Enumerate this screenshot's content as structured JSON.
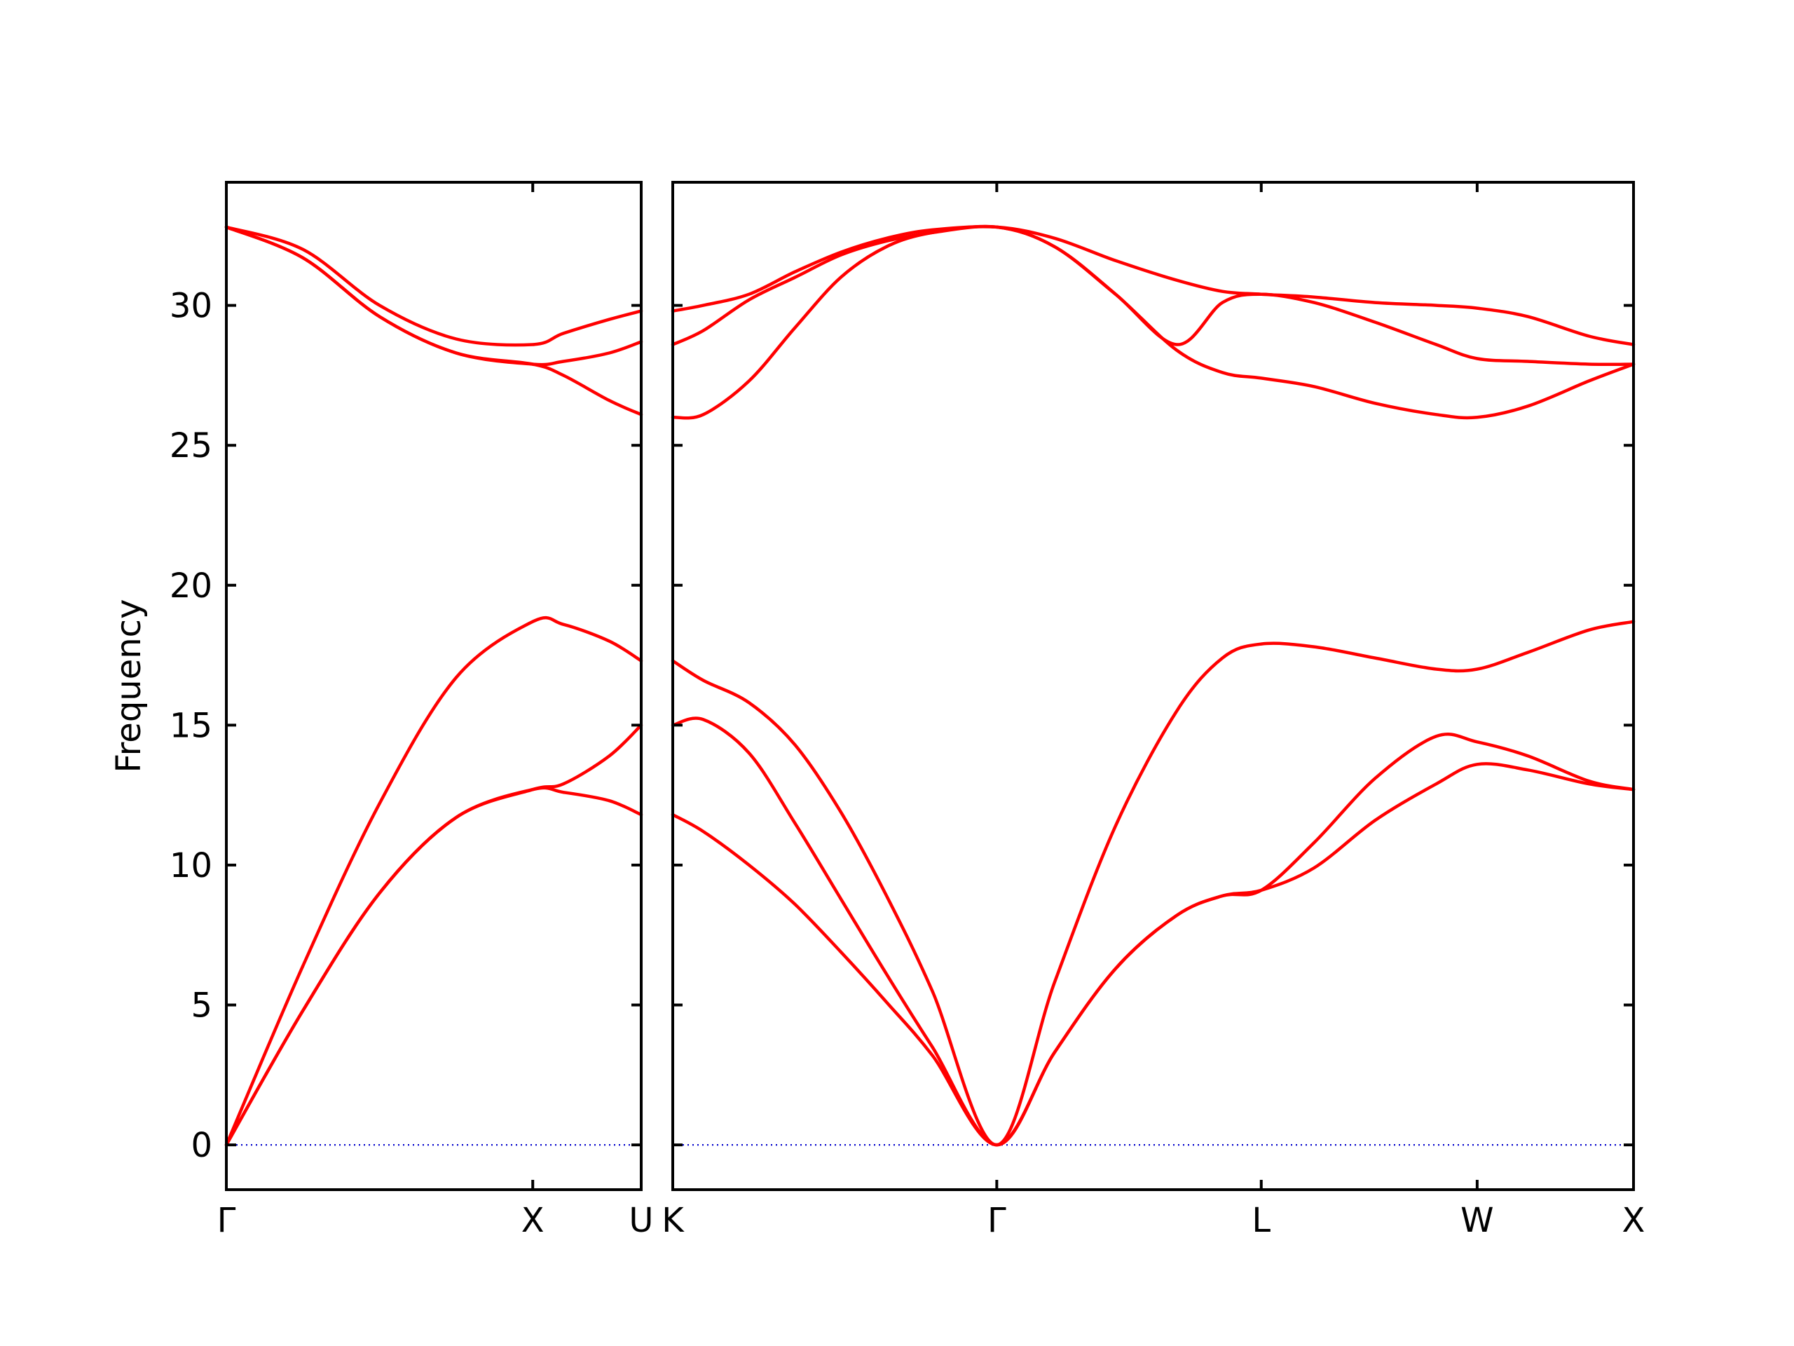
{
  "chart_data": {
    "type": "line",
    "ylabel": "Frequency",
    "ylim": [
      -1.6,
      34.4
    ],
    "yticks": [
      0,
      5,
      10,
      15,
      20,
      25,
      30
    ],
    "band_color": "#ff0000",
    "zero_line_color": "#0000cc",
    "panels": [
      {
        "xlim": [
          0,
          1.354
        ],
        "xticks": [
          {
            "x": 0,
            "label": "Γ"
          },
          {
            "x": 1.0,
            "label": "X"
          },
          {
            "x": 1.354,
            "label": "U"
          }
        ],
        "series": [
          {
            "x": [
              0,
              0.25,
              0.5,
              0.75,
              1.0,
              1.1,
              1.25,
              1.354
            ],
            "values": [
              0,
              6.4,
              12.2,
              16.7,
              18.7,
              18.6,
              18.0,
              17.3
            ]
          },
          {
            "x": [
              0,
              0.25,
              0.5,
              0.75,
              1.0,
              1.1,
              1.25,
              1.354
            ],
            "values": [
              0,
              4.8,
              9.0,
              11.7,
              12.7,
              12.9,
              13.9,
              15.0
            ]
          },
          {
            "x": [
              0,
              0.25,
              0.5,
              0.75,
              1.0,
              1.1,
              1.25,
              1.354
            ],
            "values": [
              0,
              4.8,
              9.0,
              11.7,
              12.7,
              12.6,
              12.3,
              11.8
            ]
          },
          {
            "x": [
              0,
              0.25,
              0.5,
              0.75,
              1.0,
              1.1,
              1.25,
              1.354
            ],
            "values": [
              32.8,
              32.0,
              30.0,
              28.8,
              28.6,
              29.0,
              29.5,
              29.8
            ]
          },
          {
            "x": [
              0,
              0.25,
              0.5,
              0.75,
              1.0,
              1.1,
              1.25,
              1.354
            ],
            "values": [
              32.8,
              31.7,
              29.6,
              28.3,
              27.9,
              28.0,
              28.3,
              28.7
            ]
          },
          {
            "x": [
              0,
              0.25,
              0.5,
              0.75,
              1.0,
              1.1,
              1.25,
              1.354
            ],
            "values": [
              32.8,
              31.7,
              29.6,
              28.3,
              27.9,
              27.5,
              26.6,
              26.1
            ]
          }
        ]
      },
      {
        "xlim": [
          0,
          3.146
        ],
        "xticks": [
          {
            "x": 0,
            "label": "K"
          },
          {
            "x": 1.061,
            "label": "Γ"
          },
          {
            "x": 1.927,
            "label": "L"
          },
          {
            "x": 2.634,
            "label": "W"
          },
          {
            "x": 3.146,
            "label": "X"
          }
        ],
        "series": [
          {
            "x": [
              0,
              0.1,
              0.25,
              0.4,
              0.55,
              0.7,
              0.85,
              1.061,
              1.25,
              1.45,
              1.65,
              1.8,
              1.927,
              2.1,
              2.3,
              2.5,
              2.634,
              2.8,
              3.0,
              3.146
            ],
            "values": [
              17.3,
              16.6,
              15.8,
              14.3,
              11.9,
              8.9,
              5.5,
              0,
              5.8,
              11.4,
              15.5,
              17.4,
              17.9,
              17.8,
              17.4,
              17.0,
              17.0,
              17.6,
              18.4,
              18.7
            ]
          },
          {
            "x": [
              0,
              0.1,
              0.25,
              0.4,
              0.55,
              0.7,
              0.85,
              1.061,
              1.25,
              1.45,
              1.65,
              1.8,
              1.927,
              2.1,
              2.3,
              2.5,
              2.634,
              2.8,
              3.0,
              3.146
            ],
            "values": [
              15.0,
              15.2,
              14.0,
              11.5,
              8.8,
              6.1,
              3.5,
              0,
              3.3,
              6.3,
              8.2,
              8.9,
              9.1,
              10.8,
              13.1,
              14.6,
              14.4,
              13.9,
              13.0,
              12.7
            ]
          },
          {
            "x": [
              0,
              0.1,
              0.25,
              0.4,
              0.55,
              0.7,
              0.85,
              1.061,
              1.25,
              1.45,
              1.65,
              1.8,
              1.927,
              2.1,
              2.3,
              2.5,
              2.634,
              2.8,
              3.0,
              3.146
            ],
            "values": [
              11.8,
              11.2,
              10.0,
              8.6,
              6.9,
              5.1,
              3.2,
              0,
              3.3,
              6.3,
              8.2,
              8.9,
              9.1,
              9.9,
              11.6,
              12.9,
              13.6,
              13.4,
              12.9,
              12.7
            ]
          },
          {
            "x": [
              0,
              0.1,
              0.25,
              0.4,
              0.55,
              0.7,
              0.85,
              1.061,
              1.25,
              1.45,
              1.65,
              1.8,
              1.927,
              2.1,
              2.3,
              2.5,
              2.634,
              2.8,
              3.0,
              3.146
            ],
            "values": [
              29.8,
              30.0,
              30.4,
              31.2,
              31.9,
              32.4,
              32.7,
              32.8,
              32.4,
              31.6,
              30.9,
              30.5,
              30.4,
              30.3,
              30.1,
              30.0,
              29.9,
              29.6,
              28.9,
              28.6
            ]
          },
          {
            "x": [
              0,
              0.1,
              0.25,
              0.4,
              0.55,
              0.7,
              0.85,
              1.061,
              1.25,
              1.45,
              1.65,
              1.8,
              1.927,
              2.1,
              2.3,
              2.5,
              2.634,
              2.8,
              3.0,
              3.146
            ],
            "values": [
              28.6,
              29.1,
              30.2,
              31.0,
              31.8,
              32.3,
              32.6,
              32.8,
              32.1,
              30.4,
              28.4,
              27.6,
              27.4,
              27.1,
              26.5,
              26.1,
              26.0,
              26.4,
              27.3,
              27.9
            ]
          },
          {
            "x": [
              0,
              0.1,
              0.25,
              0.4,
              0.55,
              0.7,
              0.85,
              1.061,
              1.25,
              1.45,
              1.65,
              1.8,
              1.927,
              2.1,
              2.3,
              2.5,
              2.634,
              2.8,
              3.0,
              3.146
            ],
            "values": [
              26.0,
              26.1,
              27.3,
              29.2,
              31.0,
              32.1,
              32.6,
              32.8,
              32.1,
              30.4,
              28.6,
              30.1,
              30.4,
              30.1,
              29.4,
              28.6,
              28.1,
              28.0,
              27.9,
              27.9
            ]
          }
        ]
      }
    ]
  }
}
